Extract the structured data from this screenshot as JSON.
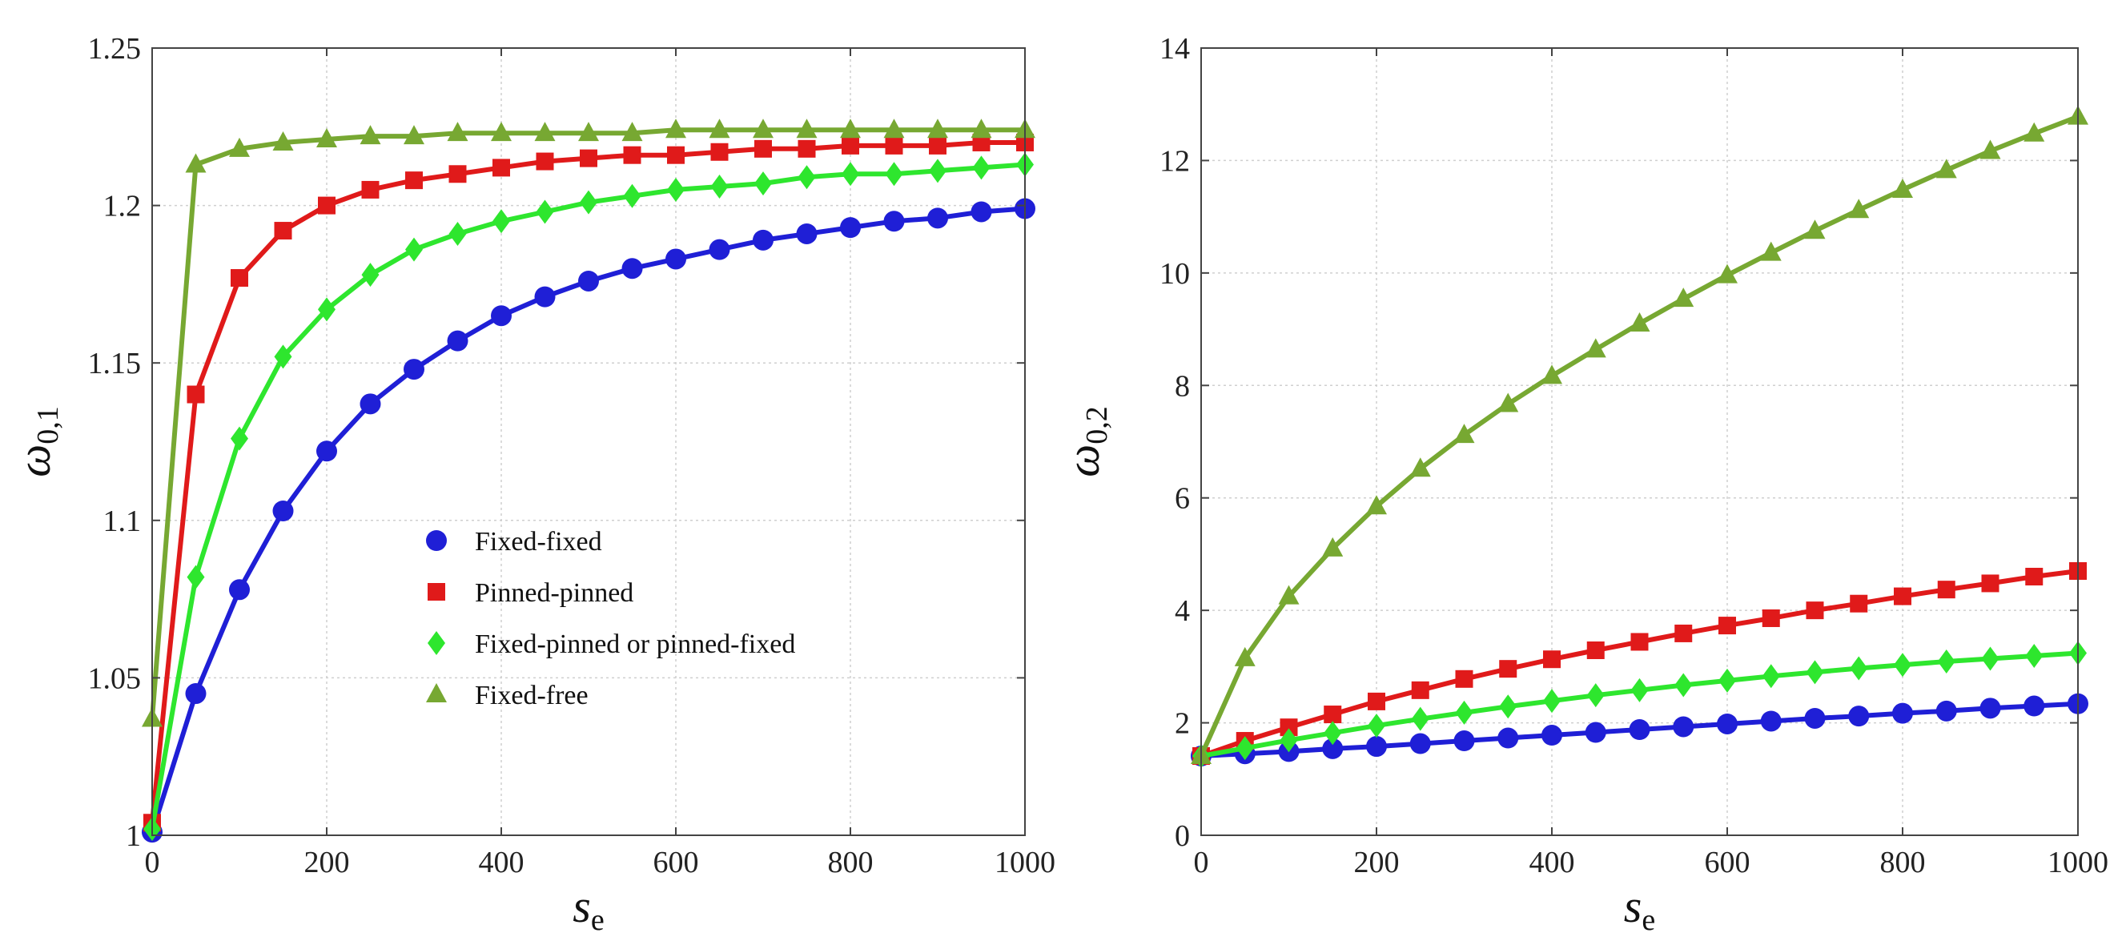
{
  "chart_data": [
    {
      "id": "left",
      "type": "line",
      "xlabel": "s",
      "xlabel_sub": "e",
      "ylabel": "ω",
      "ylabel_sub": "0,1",
      "xlim": [
        0,
        1000
      ],
      "ylim": [
        1.0,
        1.25
      ],
      "xticks": [
        0,
        200,
        400,
        600,
        800,
        1000
      ],
      "yticks": [
        1.0,
        1.05,
        1.1,
        1.15,
        1.2,
        1.25
      ],
      "ytick_labels": [
        "1",
        "1.05",
        "1.1",
        "1.15",
        "1.2",
        "1.25"
      ],
      "grid": true,
      "legend": {
        "position": "center",
        "entries": [
          "Fixed-fixed",
          "Pinned-pinned",
          "Fixed-pinned or pinned-fixed",
          "Fixed-free"
        ]
      },
      "x": [
        0,
        50,
        100,
        150,
        200,
        250,
        300,
        350,
        400,
        450,
        500,
        550,
        600,
        650,
        700,
        750,
        800,
        850,
        900,
        950,
        1000
      ],
      "series": [
        {
          "name": "Fixed-fixed",
          "color": "#1f1fd6",
          "marker": "circle",
          "values": [
            1.001,
            1.045,
            1.078,
            1.103,
            1.122,
            1.137,
            1.148,
            1.157,
            1.165,
            1.171,
            1.176,
            1.18,
            1.183,
            1.186,
            1.189,
            1.191,
            1.193,
            1.195,
            1.196,
            1.198,
            1.199
          ]
        },
        {
          "name": "Pinned-pinned",
          "color": "#e01a1a",
          "marker": "square",
          "values": [
            1.004,
            1.14,
            1.177,
            1.192,
            1.2,
            1.205,
            1.208,
            1.21,
            1.212,
            1.214,
            1.215,
            1.216,
            1.216,
            1.217,
            1.218,
            1.218,
            1.219,
            1.219,
            1.219,
            1.22,
            1.22
          ]
        },
        {
          "name": "Fixed-pinned or pinned-fixed",
          "color": "#2ee62e",
          "marker": "diamond",
          "values": [
            1.002,
            1.082,
            1.126,
            1.152,
            1.167,
            1.178,
            1.186,
            1.191,
            1.195,
            1.198,
            1.201,
            1.203,
            1.205,
            1.206,
            1.207,
            1.209,
            1.21,
            1.21,
            1.211,
            1.212,
            1.213
          ]
        },
        {
          "name": "Fixed-free",
          "color": "#77a832",
          "marker": "triangle",
          "values": [
            1.037,
            1.213,
            1.218,
            1.22,
            1.221,
            1.222,
            1.222,
            1.223,
            1.223,
            1.223,
            1.223,
            1.223,
            1.224,
            1.224,
            1.224,
            1.224,
            1.224,
            1.224,
            1.224,
            1.224,
            1.224
          ]
        }
      ]
    },
    {
      "id": "right",
      "type": "line",
      "xlabel": "s",
      "xlabel_sub": "e",
      "ylabel": "ω",
      "ylabel_sub": "0,2",
      "xlim": [
        0,
        1000
      ],
      "ylim": [
        0,
        14
      ],
      "xticks": [
        0,
        200,
        400,
        600,
        800,
        1000
      ],
      "yticks": [
        0,
        2,
        4,
        6,
        8,
        10,
        12,
        14
      ],
      "ytick_labels": [
        "0",
        "2",
        "4",
        "6",
        "8",
        "10",
        "12",
        "14"
      ],
      "grid": true,
      "x": [
        0,
        50,
        100,
        150,
        200,
        250,
        300,
        350,
        400,
        450,
        500,
        550,
        600,
        650,
        700,
        750,
        800,
        850,
        900,
        950,
        1000
      ],
      "series": [
        {
          "name": "Fixed-fixed",
          "color": "#1f1fd6",
          "marker": "circle",
          "values": [
            1.41,
            1.45,
            1.49,
            1.54,
            1.58,
            1.63,
            1.68,
            1.73,
            1.78,
            1.83,
            1.88,
            1.93,
            1.98,
            2.03,
            2.08,
            2.12,
            2.17,
            2.21,
            2.26,
            2.3,
            2.34
          ]
        },
        {
          "name": "Pinned-pinned",
          "color": "#e01a1a",
          "marker": "square",
          "values": [
            1.41,
            1.68,
            1.92,
            2.15,
            2.38,
            2.58,
            2.78,
            2.96,
            3.13,
            3.29,
            3.44,
            3.59,
            3.73,
            3.86,
            4.0,
            4.12,
            4.25,
            4.37,
            4.48,
            4.6,
            4.7
          ]
        },
        {
          "name": "Fixed-pinned or pinned-fixed",
          "color": "#2ee62e",
          "marker": "diamond",
          "values": [
            1.41,
            1.55,
            1.69,
            1.82,
            1.95,
            2.07,
            2.18,
            2.29,
            2.39,
            2.49,
            2.58,
            2.67,
            2.75,
            2.83,
            2.9,
            2.97,
            3.03,
            3.09,
            3.14,
            3.19,
            3.24
          ]
        },
        {
          "name": "Fixed-free",
          "color": "#77a832",
          "marker": "triangle",
          "values": [
            1.41,
            3.15,
            4.25,
            5.1,
            5.85,
            6.52,
            7.12,
            7.67,
            8.17,
            8.64,
            9.1,
            9.54,
            9.96,
            10.36,
            10.75,
            11.12,
            11.48,
            11.83,
            12.17,
            12.48,
            12.78
          ]
        }
      ]
    }
  ]
}
